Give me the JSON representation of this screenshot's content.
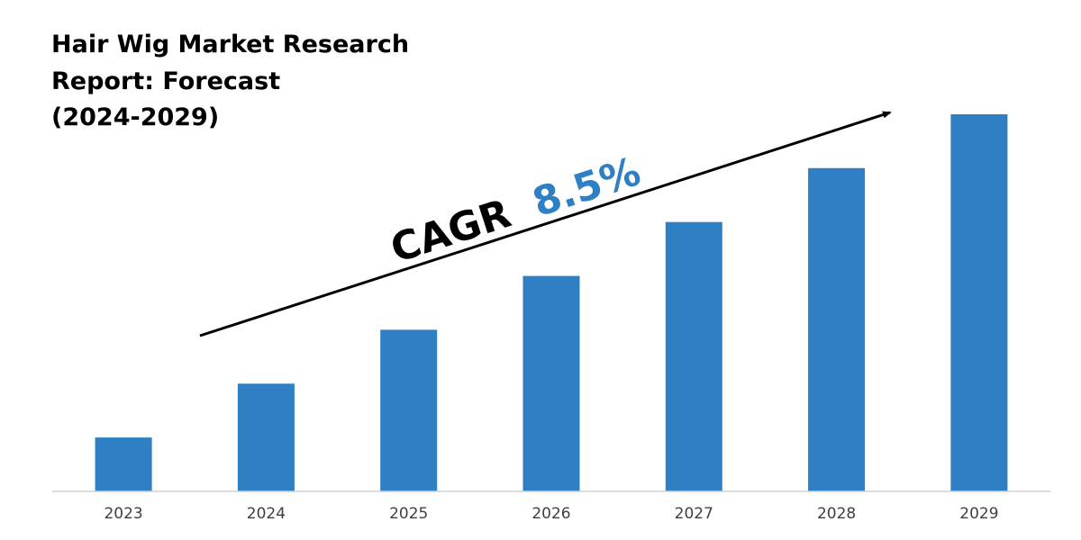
{
  "chart_data": {
    "type": "bar",
    "title_lines": [
      "Hair Wig Market Research",
      "Report: Forecast",
      "(2024-2029)"
    ],
    "categories": [
      "2023",
      "2024",
      "2025",
      "2026",
      "2027",
      "2028",
      "2029"
    ],
    "values": [
      1,
      2,
      3,
      4,
      5,
      6,
      7
    ],
    "xlabel": "",
    "ylabel": "",
    "ylim": [
      0,
      7.2
    ],
    "grid": false,
    "annotation": {
      "label": "CAGR",
      "value": "8.5%"
    }
  },
  "colors": {
    "bar": "#2e7fc3",
    "cagr_value": "#2e7fc3",
    "text": "#000000",
    "tick": "#404040",
    "axis": "#d0d0d0"
  }
}
